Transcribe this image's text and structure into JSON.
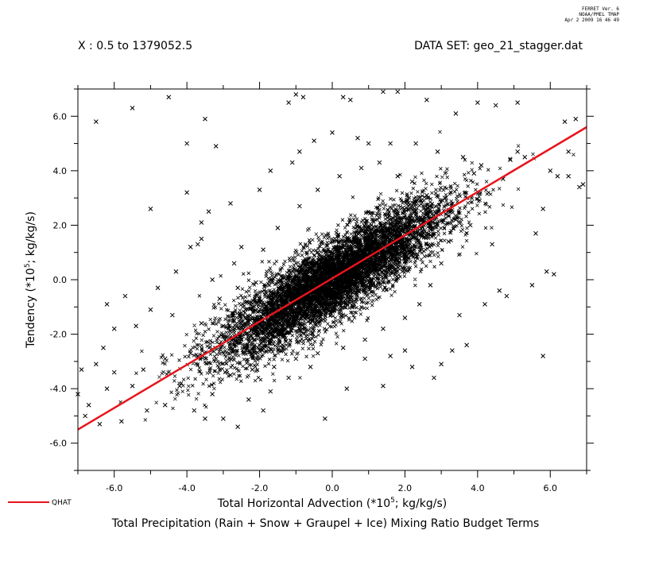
{
  "stamp": [
    "FERRET Ver. 6",
    "NOAA/PMEL TMAP",
    "Apr  2 2009 16 46 49"
  ],
  "header": {
    "x_range": "X : 0.5 to 1379052.5",
    "dataset": "DATA SET: geo_21_stagger.dat"
  },
  "footer": {
    "title": "Total Precipitation (Rain + Snow + Graupel + Ice) Mixing Ratio Budget Terms"
  },
  "chart_data": {
    "type": "scatter",
    "xlabel": "Total Horizontal Advection (*10^5; kg/kg/s)",
    "ylabel": "Tendency (*10^5; kg/kg/s)",
    "xlim": [
      -7.0,
      7.0
    ],
    "ylim": [
      -7.0,
      7.0
    ],
    "x_ticks": [
      -6.0,
      -4.0,
      -2.0,
      0.0,
      2.0,
      4.0,
      6.0
    ],
    "x_tick_labels": [
      "-6.0",
      "-4.0",
      "-2.0",
      "0.0",
      "2.0",
      "4.0",
      "6.0"
    ],
    "y_ticks": [
      -6.0,
      -4.0,
      -2.0,
      0.0,
      2.0,
      4.0,
      6.0
    ],
    "y_tick_labels": [
      "-6.0",
      "-4.0",
      "-2.0",
      "0.0",
      "2.0",
      "4.0",
      "6.0"
    ],
    "minor_tick_step": 1.0,
    "grid": false,
    "legend": {
      "placement": "bottom-left",
      "entries": [
        {
          "label": "QHAT",
          "color": "#e8141c"
        }
      ]
    },
    "fit_line": {
      "name": "QHAT",
      "color": "#e8141c",
      "x": [
        -7.0,
        7.0
      ],
      "y": [
        -5.5,
        5.6
      ]
    },
    "series": [
      {
        "marker": "x",
        "color": "#000000",
        "points": [
          [
            -6.5,
            5.8
          ],
          [
            -5.5,
            6.3
          ],
          [
            -4.5,
            6.7
          ],
          [
            -4.0,
            5.0
          ],
          [
            -3.5,
            5.9
          ],
          [
            -3.2,
            4.9
          ],
          [
            -1.2,
            6.5
          ],
          [
            -1.0,
            6.8
          ],
          [
            -0.8,
            6.7
          ],
          [
            0.3,
            6.7
          ],
          [
            0.5,
            6.6
          ],
          [
            1.4,
            6.9
          ],
          [
            1.8,
            6.9
          ],
          [
            2.6,
            6.6
          ],
          [
            3.4,
            6.1
          ],
          [
            4.0,
            6.5
          ],
          [
            4.5,
            6.4
          ],
          [
            5.1,
            6.5
          ],
          [
            6.4,
            5.8
          ],
          [
            6.7,
            5.9
          ],
          [
            6.5,
            4.7
          ],
          [
            6.9,
            3.5
          ],
          [
            6.8,
            3.4
          ],
          [
            6.5,
            3.8
          ],
          [
            5.8,
            2.6
          ],
          [
            5.6,
            1.7
          ],
          [
            5.9,
            0.3
          ],
          [
            6.1,
            0.2
          ],
          [
            5.5,
            -0.2
          ],
          [
            4.8,
            -0.6
          ],
          [
            4.4,
            1.3
          ],
          [
            3.5,
            -1.3
          ],
          [
            3.7,
            -2.4
          ],
          [
            3.3,
            -2.6
          ],
          [
            5.8,
            -2.8
          ],
          [
            2.2,
            -3.2
          ],
          [
            1.4,
            -3.9
          ],
          [
            0.4,
            -4.0
          ],
          [
            -0.2,
            -5.1
          ],
          [
            -1.9,
            -4.8
          ],
          [
            -2.6,
            -5.4
          ],
          [
            -3.0,
            -5.1
          ],
          [
            -3.5,
            -5.1
          ],
          [
            -3.8,
            -4.8
          ],
          [
            -4.6,
            -4.6
          ],
          [
            -5.1,
            -4.8
          ],
          [
            -5.8,
            -5.2
          ],
          [
            -6.4,
            -5.3
          ],
          [
            -6.8,
            -5.0
          ],
          [
            -7.0,
            -4.2
          ],
          [
            -6.9,
            -3.3
          ],
          [
            -6.5,
            -3.1
          ],
          [
            -6.3,
            -2.5
          ],
          [
            -6.0,
            -1.8
          ],
          [
            -5.4,
            -1.7
          ],
          [
            -5.0,
            -1.1
          ],
          [
            -4.8,
            -0.3
          ],
          [
            -5.7,
            -0.6
          ],
          [
            -6.2,
            -0.9
          ],
          [
            -4.3,
            0.3
          ],
          [
            -3.9,
            1.2
          ],
          [
            -3.6,
            1.5
          ],
          [
            -3.7,
            1.3
          ],
          [
            -3.4,
            2.5
          ],
          [
            -2.8,
            2.8
          ],
          [
            -2.5,
            1.2
          ],
          [
            -2.0,
            3.3
          ],
          [
            -1.7,
            4.0
          ],
          [
            -1.1,
            4.3
          ],
          [
            -0.9,
            4.7
          ],
          [
            -0.5,
            5.1
          ],
          [
            0.0,
            5.4
          ],
          [
            0.7,
            5.2
          ],
          [
            1.0,
            5.0
          ],
          [
            -5.0,
            2.6
          ],
          [
            -4.0,
            3.2
          ],
          [
            -3.6,
            2.1
          ],
          [
            -2.7,
            0.6
          ],
          [
            -3.3,
            0.0
          ],
          [
            -3.1,
            -0.7
          ],
          [
            -2.1,
            -0.1
          ],
          [
            2.8,
            -3.6
          ],
          [
            3.0,
            -3.1
          ],
          [
            4.7,
            3.7
          ],
          [
            4.9,
            4.4
          ],
          [
            5.1,
            4.7
          ],
          [
            5.3,
            4.5
          ],
          [
            4.1,
            4.2
          ],
          [
            3.6,
            4.5
          ],
          [
            2.9,
            4.7
          ],
          [
            2.3,
            5.0
          ],
          [
            1.6,
            5.0
          ],
          [
            6.0,
            4.0
          ],
          [
            6.2,
            3.8
          ],
          [
            3.9,
            3.9
          ],
          [
            3.8,
            2.0
          ],
          [
            4.2,
            -0.9
          ],
          [
            4.6,
            -0.4
          ],
          [
            2.0,
            -2.6
          ],
          [
            1.6,
            -2.8
          ],
          [
            0.9,
            -2.9
          ],
          [
            -0.6,
            -3.2
          ],
          [
            -1.2,
            -3.6
          ],
          [
            -1.7,
            -4.1
          ],
          [
            -2.3,
            -4.4
          ],
          [
            -3.3,
            -4.2
          ],
          [
            -4.2,
            -3.9
          ],
          [
            -5.5,
            -3.9
          ],
          [
            -6.2,
            -4.0
          ],
          [
            -6.7,
            -4.6
          ],
          [
            -6.0,
            -3.4
          ],
          [
            -5.2,
            -3.3
          ],
          [
            -4.6,
            -2.9
          ],
          [
            -3.9,
            -2.7
          ],
          [
            -3.6,
            -1.6
          ],
          [
            -3.0,
            -1.7
          ],
          [
            -4.4,
            -1.3
          ],
          [
            -2.6,
            -0.3
          ],
          [
            -1.9,
            1.1
          ],
          [
            -1.5,
            1.9
          ],
          [
            -0.9,
            2.7
          ],
          [
            -0.4,
            3.3
          ],
          [
            0.2,
            3.8
          ],
          [
            0.8,
            4.1
          ],
          [
            1.3,
            4.3
          ],
          [
            1.8,
            3.8
          ],
          [
            2.2,
            3.6
          ],
          [
            2.6,
            3.1
          ],
          [
            3.1,
            3.0
          ],
          [
            3.4,
            2.2
          ],
          [
            3.2,
            1.4
          ],
          [
            3.0,
            0.6
          ],
          [
            2.7,
            -0.2
          ],
          [
            2.4,
            -0.9
          ],
          [
            2.0,
            -1.4
          ],
          [
            1.4,
            -1.8
          ],
          [
            0.9,
            -2.2
          ],
          [
            0.3,
            -2.5
          ],
          [
            -0.4,
            -2.7
          ],
          [
            -1.0,
            -2.9
          ],
          [
            -1.6,
            -3.2
          ],
          [
            -2.2,
            -3.3
          ],
          [
            -2.8,
            -3.5
          ],
          [
            -0.2,
            -0.1
          ],
          [
            0.1,
            0.2
          ],
          [
            0.4,
            0.3
          ],
          [
            -0.5,
            -0.4
          ],
          [
            0.7,
            0.6
          ],
          [
            -0.9,
            -0.7
          ],
          [
            1.1,
            0.9
          ],
          [
            -1.3,
            -1.0
          ],
          [
            1.6,
            1.3
          ],
          [
            -1.7,
            -1.4
          ],
          [
            2.1,
            1.7
          ],
          [
            -2.2,
            -1.8
          ]
        ]
      }
    ]
  }
}
